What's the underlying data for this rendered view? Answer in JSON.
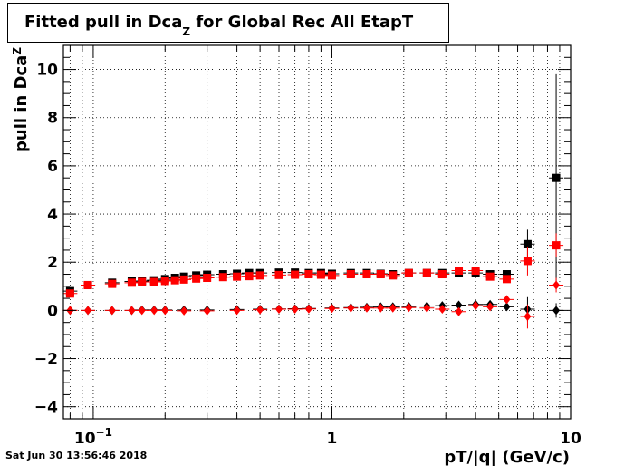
{
  "chart_data": {
    "type": "scatter",
    "title_main": "Fitted pull in Dca",
    "title_sub": "Z",
    "title_rest": " for Global Rec All EtapT",
    "ylabel_main": "pull in Dca",
    "ylabel_sub": "Z",
    "xlabel": "pT/|q| (GeV/c)",
    "xscale": "log",
    "xlim": [
      0.075,
      10
    ],
    "ylim": [
      -4.5,
      11
    ],
    "grid": true,
    "x_ticks": [
      {
        "v": 0.1,
        "base": "10",
        "exp": "−1"
      },
      {
        "v": 1,
        "base": "1",
        "exp": ""
      },
      {
        "v": 10,
        "base": "10",
        "exp": ""
      }
    ],
    "y_ticks": [
      {
        "v": -4,
        "label": "−4"
      },
      {
        "v": -2,
        "label": "−2"
      },
      {
        "v": 0,
        "label": "0"
      },
      {
        "v": 2,
        "label": "2"
      },
      {
        "v": 4,
        "label": "4"
      },
      {
        "v": 6,
        "label": "6"
      },
      {
        "v": 8,
        "label": "8"
      },
      {
        "v": 10,
        "label": "10"
      }
    ],
    "series": [
      {
        "marker": "square",
        "color": "#000000",
        "points": [
          {
            "x": 0.08,
            "y": 0.8
          },
          {
            "x": 0.095,
            "y": 1.05
          },
          {
            "x": 0.12,
            "y": 1.15
          },
          {
            "x": 0.145,
            "y": 1.2
          },
          {
            "x": 0.16,
            "y": 1.22
          },
          {
            "x": 0.18,
            "y": 1.25
          },
          {
            "x": 0.2,
            "y": 1.3
          },
          {
            "x": 0.22,
            "y": 1.35
          },
          {
            "x": 0.24,
            "y": 1.4
          },
          {
            "x": 0.27,
            "y": 1.45
          },
          {
            "x": 0.3,
            "y": 1.48
          },
          {
            "x": 0.35,
            "y": 1.5
          },
          {
            "x": 0.4,
            "y": 1.52
          },
          {
            "x": 0.45,
            "y": 1.55
          },
          {
            "x": 0.5,
            "y": 1.55
          },
          {
            "x": 0.6,
            "y": 1.57
          },
          {
            "x": 0.7,
            "y": 1.57
          },
          {
            "x": 0.8,
            "y": 1.55
          },
          {
            "x": 0.9,
            "y": 1.55
          },
          {
            "x": 1.0,
            "y": 1.52
          },
          {
            "x": 1.2,
            "y": 1.55
          },
          {
            "x": 1.4,
            "y": 1.55
          },
          {
            "x": 1.6,
            "y": 1.52
          },
          {
            "x": 1.8,
            "y": 1.5
          },
          {
            "x": 2.1,
            "y": 1.55
          },
          {
            "x": 2.5,
            "y": 1.55
          },
          {
            "x": 2.9,
            "y": 1.55
          },
          {
            "x": 3.4,
            "y": 1.55
          },
          {
            "x": 4.0,
            "y": 1.55
          },
          {
            "x": 4.6,
            "y": 1.5
          },
          {
            "x": 5.4,
            "y": 1.5
          },
          {
            "x": 6.6,
            "y": 2.75,
            "ey": 0.6
          },
          {
            "x": 8.7,
            "y": 5.5,
            "ey": 4.3
          }
        ]
      },
      {
        "marker": "square",
        "color": "#ff0000",
        "points": [
          {
            "x": 0.08,
            "y": 0.7
          },
          {
            "x": 0.095,
            "y": 1.05
          },
          {
            "x": 0.12,
            "y": 1.1
          },
          {
            "x": 0.145,
            "y": 1.15
          },
          {
            "x": 0.16,
            "y": 1.18
          },
          {
            "x": 0.18,
            "y": 1.18
          },
          {
            "x": 0.2,
            "y": 1.22
          },
          {
            "x": 0.22,
            "y": 1.25
          },
          {
            "x": 0.24,
            "y": 1.28
          },
          {
            "x": 0.27,
            "y": 1.32
          },
          {
            "x": 0.3,
            "y": 1.35
          },
          {
            "x": 0.35,
            "y": 1.38
          },
          {
            "x": 0.4,
            "y": 1.4
          },
          {
            "x": 0.45,
            "y": 1.42
          },
          {
            "x": 0.5,
            "y": 1.45
          },
          {
            "x": 0.6,
            "y": 1.47
          },
          {
            "x": 0.7,
            "y": 1.48
          },
          {
            "x": 0.8,
            "y": 1.5
          },
          {
            "x": 0.9,
            "y": 1.48
          },
          {
            "x": 1.0,
            "y": 1.45
          },
          {
            "x": 1.2,
            "y": 1.5
          },
          {
            "x": 1.4,
            "y": 1.5
          },
          {
            "x": 1.6,
            "y": 1.5
          },
          {
            "x": 1.8,
            "y": 1.45
          },
          {
            "x": 2.1,
            "y": 1.55
          },
          {
            "x": 2.5,
            "y": 1.55
          },
          {
            "x": 2.9,
            "y": 1.5
          },
          {
            "x": 3.4,
            "y": 1.65
          },
          {
            "x": 4.0,
            "y": 1.65
          },
          {
            "x": 4.6,
            "y": 1.4
          },
          {
            "x": 5.4,
            "y": 1.3
          },
          {
            "x": 6.6,
            "y": 2.05,
            "ey": 0.6
          },
          {
            "x": 8.7,
            "y": 2.7,
            "ey": 0.5
          }
        ]
      },
      {
        "marker": "diamond",
        "color": "#000000",
        "points": [
          {
            "x": 0.08,
            "y": 0.0
          },
          {
            "x": 0.095,
            "y": 0.0
          },
          {
            "x": 0.12,
            "y": 0.0
          },
          {
            "x": 0.145,
            "y": 0.0
          },
          {
            "x": 0.16,
            "y": 0.02
          },
          {
            "x": 0.18,
            "y": 0.02
          },
          {
            "x": 0.2,
            "y": 0.02
          },
          {
            "x": 0.24,
            "y": 0.02
          },
          {
            "x": 0.3,
            "y": 0.02
          },
          {
            "x": 0.4,
            "y": 0.04
          },
          {
            "x": 0.5,
            "y": 0.05
          },
          {
            "x": 0.6,
            "y": 0.06
          },
          {
            "x": 0.7,
            "y": 0.07
          },
          {
            "x": 0.8,
            "y": 0.08
          },
          {
            "x": 1.0,
            "y": 0.1
          },
          {
            "x": 1.2,
            "y": 0.12
          },
          {
            "x": 1.4,
            "y": 0.13
          },
          {
            "x": 1.6,
            "y": 0.15
          },
          {
            "x": 1.8,
            "y": 0.15
          },
          {
            "x": 2.1,
            "y": 0.16
          },
          {
            "x": 2.5,
            "y": 0.18
          },
          {
            "x": 2.9,
            "y": 0.2
          },
          {
            "x": 3.4,
            "y": 0.22
          },
          {
            "x": 4.0,
            "y": 0.25
          },
          {
            "x": 4.6,
            "y": 0.25
          },
          {
            "x": 5.4,
            "y": 0.15
          },
          {
            "x": 6.6,
            "y": 0.05,
            "ey": 0.5
          },
          {
            "x": 8.7,
            "y": 0.0,
            "ey": 0.3
          }
        ]
      },
      {
        "marker": "diamond",
        "color": "#ff0000",
        "points": [
          {
            "x": 0.08,
            "y": 0.0
          },
          {
            "x": 0.095,
            "y": 0.0
          },
          {
            "x": 0.12,
            "y": 0.0
          },
          {
            "x": 0.145,
            "y": 0.0
          },
          {
            "x": 0.16,
            "y": 0.0
          },
          {
            "x": 0.18,
            "y": 0.0
          },
          {
            "x": 0.2,
            "y": 0.0
          },
          {
            "x": 0.24,
            "y": -0.02
          },
          {
            "x": 0.3,
            "y": -0.02
          },
          {
            "x": 0.4,
            "y": 0.0
          },
          {
            "x": 0.5,
            "y": 0.03
          },
          {
            "x": 0.6,
            "y": 0.05
          },
          {
            "x": 0.7,
            "y": 0.05
          },
          {
            "x": 0.8,
            "y": 0.06
          },
          {
            "x": 1.0,
            "y": 0.08
          },
          {
            "x": 1.2,
            "y": 0.1
          },
          {
            "x": 1.4,
            "y": 0.1
          },
          {
            "x": 1.6,
            "y": 0.1
          },
          {
            "x": 1.8,
            "y": 0.1
          },
          {
            "x": 2.1,
            "y": 0.12
          },
          {
            "x": 2.5,
            "y": 0.1
          },
          {
            "x": 2.9,
            "y": 0.05
          },
          {
            "x": 3.4,
            "y": -0.05
          },
          {
            "x": 4.0,
            "y": 0.2
          },
          {
            "x": 4.6,
            "y": 0.15
          },
          {
            "x": 5.4,
            "y": 0.45
          },
          {
            "x": 6.6,
            "y": -0.25,
            "ey": 0.5
          },
          {
            "x": 8.7,
            "y": 1.05,
            "ey": 0.3
          }
        ]
      }
    ]
  },
  "timestamp": "Sat Jun 30 13:56:46 2018"
}
